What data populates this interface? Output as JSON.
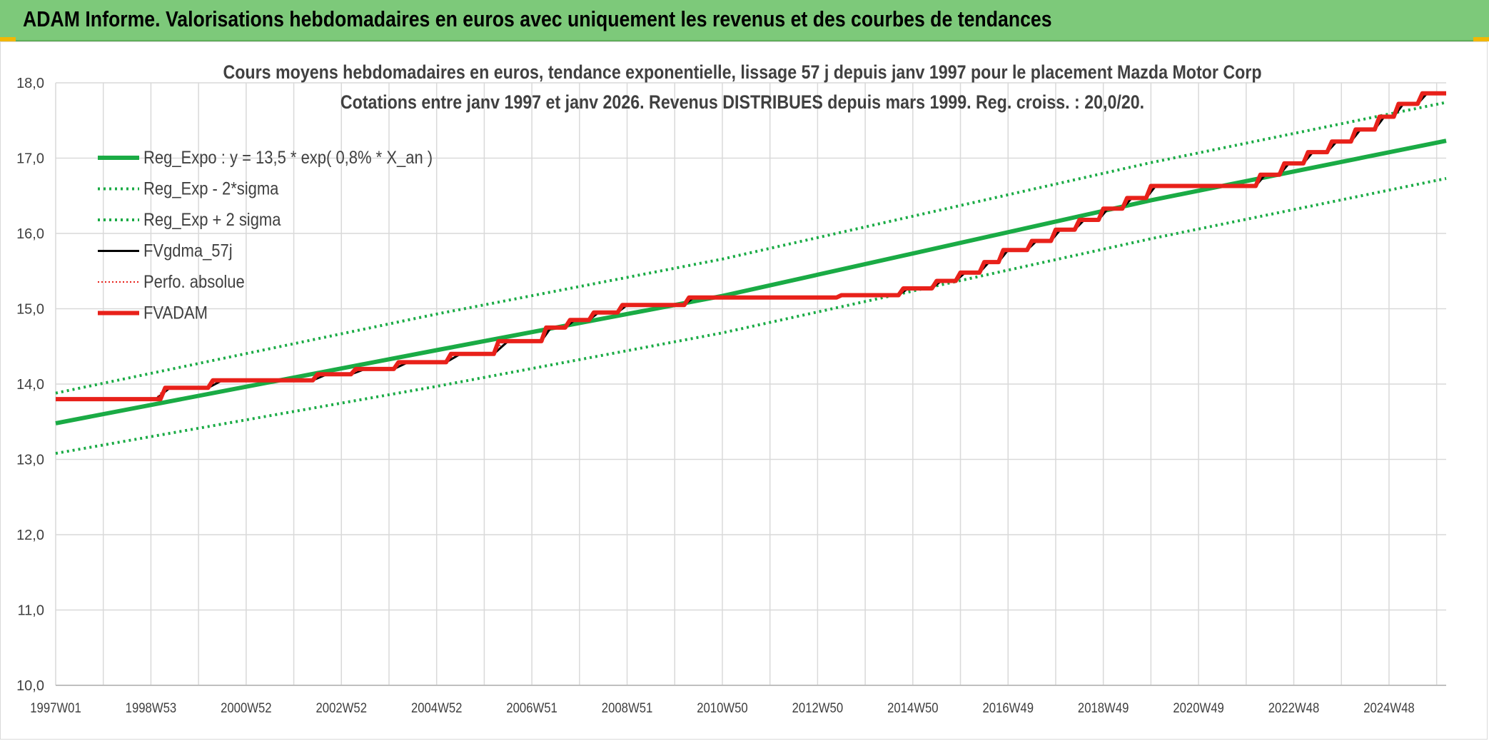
{
  "banner": {
    "title": "ADAM Informe. Valorisations hebdomadaires en euros avec uniquement les revenus et des courbes de tendances"
  },
  "colors": {
    "banner_bg": "#7dc97a",
    "green": "#1aab45",
    "black": "#000000",
    "red": "#e8211a",
    "grid": "#d9d9d9",
    "axis_text": "#404040",
    "title_text": "#404040"
  },
  "chart_data": {
    "type": "line",
    "title": "Cours moyens hebdomadaires en euros, tendance exponentielle, lissage 57 j depuis janv 1997 pour le placement Mazda Motor Corp",
    "subtitle": "Cotations entre janv 1997 et janv 2026. Revenus DISTRIBUES depuis mars 1999. Reg. croiss. : 20,0/20.",
    "xlabel": "",
    "ylabel": "",
    "x_range": [
      1997.0,
      2026.2
    ],
    "ylim": [
      10,
      18
    ],
    "y_ticks": [
      "10,0",
      "11,0",
      "12,0",
      "13,0",
      "14,0",
      "15,0",
      "16,0",
      "17,0",
      "18,0"
    ],
    "x_tick_labels": [
      {
        "label": "1997W01",
        "x": 1997.0
      },
      {
        "label": "1998W53",
        "x": 1999.0
      },
      {
        "label": "2000W52",
        "x": 2001.0
      },
      {
        "label": "2002W52",
        "x": 2003.0
      },
      {
        "label": "2004W52",
        "x": 2005.0
      },
      {
        "label": "2006W51",
        "x": 2007.0
      },
      {
        "label": "2008W51",
        "x": 2009.0
      },
      {
        "label": "2010W50",
        "x": 2011.0
      },
      {
        "label": "2012W50",
        "x": 2013.0
      },
      {
        "label": "2014W50",
        "x": 2015.0
      },
      {
        "label": "2016W49",
        "x": 2017.0
      },
      {
        "label": "2018W49",
        "x": 2019.0
      },
      {
        "label": "2020W49",
        "x": 2021.0
      },
      {
        "label": "2022W48",
        "x": 2023.0
      },
      {
        "label": "2024W48",
        "x": 2025.0
      }
    ],
    "grid": true,
    "legend_position": "top-left",
    "series": [
      {
        "name": "Reg_Expo : y = 13,5 * exp( 0,8% *  X_an )",
        "style": "solid-thick",
        "color": "#1aab45",
        "points": [
          [
            1997.0,
            13.48
          ],
          [
            2005.0,
            14.45
          ],
          [
            2011.0,
            15.17
          ],
          [
            2020.0,
            16.44
          ],
          [
            2026.2,
            17.23
          ]
        ]
      },
      {
        "name": "Reg_Exp - 2*sigma",
        "style": "dotted",
        "color": "#1aab45",
        "points": [
          [
            1997.0,
            13.08
          ],
          [
            2005.0,
            13.97
          ],
          [
            2011.0,
            14.68
          ],
          [
            2020.0,
            15.93
          ],
          [
            2026.2,
            16.73
          ]
        ]
      },
      {
        "name": "Reg_Exp + 2 sigma",
        "style": "dotted",
        "color": "#1aab45",
        "points": [
          [
            1997.0,
            13.88
          ],
          [
            2005.0,
            14.93
          ],
          [
            2011.0,
            15.66
          ],
          [
            2020.0,
            16.94
          ],
          [
            2026.2,
            17.74
          ]
        ]
      },
      {
        "name": "FVgdma_57j",
        "style": "solid-thin",
        "color": "#000000",
        "points": [
          [
            1997.0,
            13.8
          ],
          [
            1999.1,
            13.8
          ],
          [
            1999.4,
            13.95
          ],
          [
            2000.2,
            13.95
          ],
          [
            2000.5,
            14.05
          ],
          [
            2002.4,
            14.05
          ],
          [
            2002.7,
            14.13
          ],
          [
            2003.2,
            14.13
          ],
          [
            2003.5,
            14.2
          ],
          [
            2004.1,
            14.2
          ],
          [
            2004.4,
            14.29
          ],
          [
            2005.2,
            14.29
          ],
          [
            2005.5,
            14.4
          ],
          [
            2006.2,
            14.4
          ],
          [
            2006.5,
            14.57
          ],
          [
            2007.2,
            14.57
          ],
          [
            2007.4,
            14.75
          ],
          [
            2007.7,
            14.75
          ],
          [
            2007.9,
            14.85
          ],
          [
            2008.2,
            14.85
          ],
          [
            2008.4,
            14.95
          ],
          [
            2008.8,
            14.95
          ],
          [
            2009.0,
            15.05
          ],
          [
            2010.2,
            15.05
          ],
          [
            2010.4,
            15.15
          ],
          [
            2013.4,
            15.15
          ],
          [
            2013.6,
            15.18
          ],
          [
            2014.7,
            15.18
          ],
          [
            2014.9,
            15.27
          ],
          [
            2015.4,
            15.27
          ],
          [
            2015.6,
            15.37
          ],
          [
            2015.9,
            15.37
          ],
          [
            2016.1,
            15.48
          ],
          [
            2016.4,
            15.48
          ],
          [
            2016.6,
            15.62
          ],
          [
            2016.8,
            15.62
          ],
          [
            2017.0,
            15.78
          ],
          [
            2017.4,
            15.78
          ],
          [
            2017.6,
            15.9
          ],
          [
            2017.9,
            15.9
          ],
          [
            2018.1,
            16.05
          ],
          [
            2018.4,
            16.05
          ],
          [
            2018.6,
            16.18
          ],
          [
            2018.9,
            16.18
          ],
          [
            2019.1,
            16.33
          ],
          [
            2019.4,
            16.33
          ],
          [
            2019.6,
            16.47
          ],
          [
            2019.9,
            16.47
          ],
          [
            2020.1,
            16.63
          ],
          [
            2022.2,
            16.63
          ],
          [
            2022.4,
            16.78
          ],
          [
            2022.7,
            16.78
          ],
          [
            2022.9,
            16.93
          ],
          [
            2023.2,
            16.93
          ],
          [
            2023.4,
            17.08
          ],
          [
            2023.7,
            17.08
          ],
          [
            2023.9,
            17.22
          ],
          [
            2024.2,
            17.22
          ],
          [
            2024.4,
            17.38
          ],
          [
            2024.7,
            17.38
          ],
          [
            2024.9,
            17.55
          ],
          [
            2025.1,
            17.55
          ],
          [
            2025.3,
            17.72
          ],
          [
            2025.6,
            17.72
          ],
          [
            2025.8,
            17.86
          ],
          [
            2026.2,
            17.86
          ]
        ]
      },
      {
        "name": "Perfo. absolue",
        "style": "dotted-thin",
        "color": "#e8211a",
        "points": [
          [
            1997.0,
            13.8
          ],
          [
            1999.1,
            13.8
          ],
          [
            1999.3,
            13.95
          ],
          [
            2000.2,
            13.95
          ],
          [
            2000.4,
            14.05
          ],
          [
            2002.4,
            14.05
          ],
          [
            2002.6,
            14.13
          ],
          [
            2003.2,
            14.13
          ],
          [
            2003.4,
            14.2
          ],
          [
            2004.1,
            14.2
          ],
          [
            2004.3,
            14.29
          ],
          [
            2005.2,
            14.29
          ],
          [
            2005.4,
            14.4
          ],
          [
            2006.2,
            14.4
          ],
          [
            2006.4,
            14.57
          ],
          [
            2007.2,
            14.57
          ],
          [
            2007.3,
            14.75
          ],
          [
            2007.7,
            14.75
          ],
          [
            2007.8,
            14.85
          ],
          [
            2008.2,
            14.85
          ],
          [
            2008.3,
            14.95
          ],
          [
            2008.8,
            14.95
          ],
          [
            2008.9,
            15.05
          ],
          [
            2010.2,
            15.05
          ],
          [
            2010.3,
            15.15
          ],
          [
            2013.4,
            15.15
          ],
          [
            2013.5,
            15.18
          ],
          [
            2014.7,
            15.18
          ],
          [
            2014.8,
            15.27
          ],
          [
            2015.4,
            15.27
          ],
          [
            2015.5,
            15.37
          ],
          [
            2015.9,
            15.37
          ],
          [
            2016.0,
            15.48
          ],
          [
            2016.4,
            15.48
          ],
          [
            2016.5,
            15.62
          ],
          [
            2016.8,
            15.62
          ],
          [
            2016.9,
            15.78
          ],
          [
            2017.4,
            15.78
          ],
          [
            2017.5,
            15.9
          ],
          [
            2017.9,
            15.9
          ],
          [
            2018.0,
            16.05
          ],
          [
            2018.4,
            16.05
          ],
          [
            2018.5,
            16.18
          ],
          [
            2018.9,
            16.18
          ],
          [
            2019.0,
            16.33
          ],
          [
            2019.4,
            16.33
          ],
          [
            2019.5,
            16.47
          ],
          [
            2019.9,
            16.47
          ],
          [
            2020.0,
            16.63
          ],
          [
            2022.2,
            16.63
          ],
          [
            2022.3,
            16.78
          ],
          [
            2022.7,
            16.78
          ],
          [
            2022.8,
            16.93
          ],
          [
            2023.2,
            16.93
          ],
          [
            2023.3,
            17.08
          ],
          [
            2023.7,
            17.08
          ],
          [
            2023.8,
            17.22
          ],
          [
            2024.2,
            17.22
          ],
          [
            2024.3,
            17.38
          ],
          [
            2024.7,
            17.38
          ],
          [
            2024.8,
            17.55
          ],
          [
            2025.1,
            17.55
          ],
          [
            2025.2,
            17.72
          ],
          [
            2025.6,
            17.72
          ],
          [
            2025.7,
            17.86
          ],
          [
            2026.2,
            17.86
          ]
        ]
      },
      {
        "name": "FVADAM",
        "style": "solid-thick",
        "color": "#e8211a",
        "points": [
          [
            1997.0,
            13.8
          ],
          [
            1999.2,
            13.8
          ],
          [
            1999.3,
            13.95
          ],
          [
            2000.2,
            13.95
          ],
          [
            2000.3,
            14.05
          ],
          [
            2002.4,
            14.05
          ],
          [
            2002.5,
            14.13
          ],
          [
            2003.2,
            14.13
          ],
          [
            2003.3,
            14.2
          ],
          [
            2004.1,
            14.2
          ],
          [
            2004.2,
            14.29
          ],
          [
            2005.2,
            14.29
          ],
          [
            2005.3,
            14.4
          ],
          [
            2006.2,
            14.4
          ],
          [
            2006.3,
            14.57
          ],
          [
            2007.2,
            14.57
          ],
          [
            2007.3,
            14.75
          ],
          [
            2007.7,
            14.75
          ],
          [
            2007.8,
            14.85
          ],
          [
            2008.2,
            14.85
          ],
          [
            2008.3,
            14.95
          ],
          [
            2008.8,
            14.95
          ],
          [
            2008.9,
            15.05
          ],
          [
            2010.2,
            15.05
          ],
          [
            2010.3,
            15.15
          ],
          [
            2013.4,
            15.15
          ],
          [
            2013.5,
            15.18
          ],
          [
            2014.7,
            15.18
          ],
          [
            2014.8,
            15.27
          ],
          [
            2015.4,
            15.27
          ],
          [
            2015.5,
            15.37
          ],
          [
            2015.9,
            15.37
          ],
          [
            2016.0,
            15.48
          ],
          [
            2016.4,
            15.48
          ],
          [
            2016.5,
            15.62
          ],
          [
            2016.8,
            15.62
          ],
          [
            2016.9,
            15.78
          ],
          [
            2017.4,
            15.78
          ],
          [
            2017.5,
            15.9
          ],
          [
            2017.9,
            15.9
          ],
          [
            2018.0,
            16.05
          ],
          [
            2018.4,
            16.05
          ],
          [
            2018.5,
            16.18
          ],
          [
            2018.9,
            16.18
          ],
          [
            2019.0,
            16.33
          ],
          [
            2019.4,
            16.33
          ],
          [
            2019.5,
            16.47
          ],
          [
            2019.9,
            16.47
          ],
          [
            2020.0,
            16.63
          ],
          [
            2022.2,
            16.63
          ],
          [
            2022.3,
            16.78
          ],
          [
            2022.7,
            16.78
          ],
          [
            2022.8,
            16.93
          ],
          [
            2023.2,
            16.93
          ],
          [
            2023.3,
            17.08
          ],
          [
            2023.7,
            17.08
          ],
          [
            2023.8,
            17.22
          ],
          [
            2024.2,
            17.22
          ],
          [
            2024.3,
            17.38
          ],
          [
            2024.7,
            17.38
          ],
          [
            2024.8,
            17.55
          ],
          [
            2025.1,
            17.55
          ],
          [
            2025.2,
            17.72
          ],
          [
            2025.6,
            17.72
          ],
          [
            2025.7,
            17.86
          ],
          [
            2026.2,
            17.86
          ]
        ]
      }
    ]
  }
}
